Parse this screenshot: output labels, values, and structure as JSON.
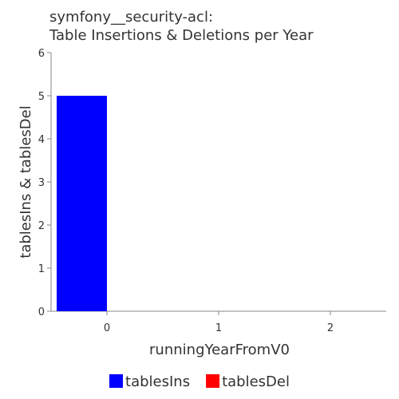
{
  "chart_data": {
    "type": "bar",
    "title_lines": [
      "symfony__security-acl:",
      "Table Insertions & Deletions per Year"
    ],
    "xlabel": "runningYearFromV0",
    "ylabel": "tablesIns & tablesDel",
    "x_ticks": [
      "0",
      "1",
      "2"
    ],
    "y_ticks": [
      "0",
      "1",
      "2",
      "3",
      "4",
      "5",
      "6"
    ],
    "xlim": [
      -0.5,
      2.5
    ],
    "ylim": [
      0,
      6
    ],
    "grid": false,
    "legend_position": "bottom",
    "categories": [
      0,
      1,
      2
    ],
    "series": [
      {
        "name": "tablesIns",
        "color": "#0000ff",
        "values": [
          5,
          0,
          0
        ]
      },
      {
        "name": "tablesDel",
        "color": "#ff0000",
        "values": [
          0,
          0,
          0
        ]
      }
    ]
  }
}
